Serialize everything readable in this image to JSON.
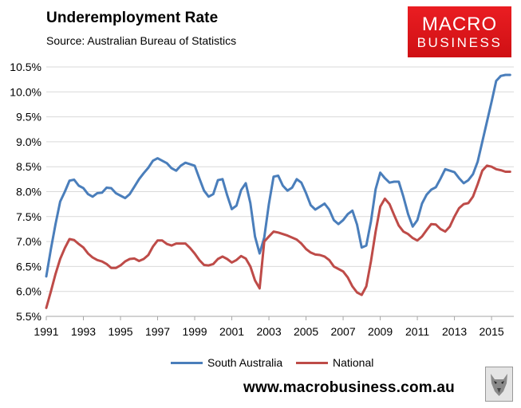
{
  "header": {
    "title": "Underemployment Rate",
    "subtitle": "Source: Australian Bureau of Statistics"
  },
  "logo": {
    "line1": "MACRO",
    "line2": "BUSINESS",
    "color": "#e31b23"
  },
  "footer": {
    "url": "www.macrobusiness.com.au",
    "icon": "wolf-logo-icon"
  },
  "colors": {
    "south_australia": "#4a7ebb",
    "national": "#be4b48",
    "grid": "#d9d9d9"
  },
  "chart_data": {
    "type": "line",
    "title": "Underemployment Rate",
    "xlabel": "",
    "ylabel": "",
    "xlim": [
      1991,
      2016.2
    ],
    "ylim": [
      5.5,
      10.5
    ],
    "y_ticks": [
      "5.5%",
      "6.0%",
      "6.5%",
      "7.0%",
      "7.5%",
      "8.0%",
      "8.5%",
      "9.0%",
      "9.5%",
      "10.0%",
      "10.5%"
    ],
    "x_ticks": [
      "1991",
      "1993",
      "1995",
      "1997",
      "1999",
      "2001",
      "2003",
      "2005",
      "2007",
      "2009",
      "2011",
      "2013",
      "2015"
    ],
    "grid": "horizontal",
    "legend_position": "bottom",
    "series": [
      {
        "name": "South Australia",
        "color": "#4a7ebb",
        "points": [
          [
            1991.0,
            6.3
          ],
          [
            1991.25,
            6.85
          ],
          [
            1991.5,
            7.35
          ],
          [
            1991.75,
            7.8
          ],
          [
            1992.0,
            8.0
          ],
          [
            1992.25,
            8.22
          ],
          [
            1992.5,
            8.24
          ],
          [
            1992.75,
            8.12
          ],
          [
            1993.0,
            8.07
          ],
          [
            1993.25,
            7.95
          ],
          [
            1993.5,
            7.9
          ],
          [
            1993.75,
            7.97
          ],
          [
            1994.0,
            7.98
          ],
          [
            1994.25,
            8.08
          ],
          [
            1994.5,
            8.07
          ],
          [
            1994.75,
            7.97
          ],
          [
            1995.0,
            7.92
          ],
          [
            1995.25,
            7.87
          ],
          [
            1995.5,
            7.95
          ],
          [
            1995.75,
            8.1
          ],
          [
            1996.0,
            8.25
          ],
          [
            1996.25,
            8.37
          ],
          [
            1996.5,
            8.48
          ],
          [
            1996.75,
            8.62
          ],
          [
            1997.0,
            8.67
          ],
          [
            1997.25,
            8.62
          ],
          [
            1997.5,
            8.57
          ],
          [
            1997.75,
            8.47
          ],
          [
            1998.0,
            8.42
          ],
          [
            1998.25,
            8.52
          ],
          [
            1998.5,
            8.58
          ],
          [
            1998.75,
            8.55
          ],
          [
            1999.0,
            8.52
          ],
          [
            1999.25,
            8.27
          ],
          [
            1999.5,
            8.02
          ],
          [
            1999.75,
            7.9
          ],
          [
            2000.0,
            7.95
          ],
          [
            2000.25,
            8.23
          ],
          [
            2000.5,
            8.25
          ],
          [
            2000.75,
            7.93
          ],
          [
            2001.0,
            7.65
          ],
          [
            2001.25,
            7.72
          ],
          [
            2001.5,
            8.03
          ],
          [
            2001.75,
            8.17
          ],
          [
            2002.0,
            7.77
          ],
          [
            2002.25,
            7.1
          ],
          [
            2002.5,
            6.76
          ],
          [
            2002.75,
            7.08
          ],
          [
            2003.0,
            7.75
          ],
          [
            2003.25,
            8.3
          ],
          [
            2003.5,
            8.32
          ],
          [
            2003.75,
            8.12
          ],
          [
            2004.0,
            8.02
          ],
          [
            2004.25,
            8.08
          ],
          [
            2004.5,
            8.25
          ],
          [
            2004.75,
            8.18
          ],
          [
            2005.0,
            7.97
          ],
          [
            2005.25,
            7.73
          ],
          [
            2005.5,
            7.64
          ],
          [
            2005.75,
            7.7
          ],
          [
            2006.0,
            7.76
          ],
          [
            2006.25,
            7.64
          ],
          [
            2006.5,
            7.43
          ],
          [
            2006.75,
            7.35
          ],
          [
            2007.0,
            7.43
          ],
          [
            2007.25,
            7.55
          ],
          [
            2007.5,
            7.62
          ],
          [
            2007.75,
            7.34
          ],
          [
            2008.0,
            6.88
          ],
          [
            2008.25,
            6.92
          ],
          [
            2008.5,
            7.4
          ],
          [
            2008.75,
            8.05
          ],
          [
            2009.0,
            8.38
          ],
          [
            2009.25,
            8.27
          ],
          [
            2009.5,
            8.18
          ],
          [
            2009.75,
            8.2
          ],
          [
            2010.0,
            8.2
          ],
          [
            2010.25,
            7.9
          ],
          [
            2010.5,
            7.55
          ],
          [
            2010.75,
            7.3
          ],
          [
            2011.0,
            7.43
          ],
          [
            2011.25,
            7.76
          ],
          [
            2011.5,
            7.94
          ],
          [
            2011.75,
            8.04
          ],
          [
            2012.0,
            8.09
          ],
          [
            2012.25,
            8.26
          ],
          [
            2012.5,
            8.45
          ],
          [
            2012.75,
            8.42
          ],
          [
            2013.0,
            8.39
          ],
          [
            2013.25,
            8.27
          ],
          [
            2013.5,
            8.17
          ],
          [
            2013.75,
            8.23
          ],
          [
            2014.0,
            8.35
          ],
          [
            2014.25,
            8.6
          ],
          [
            2014.5,
            9.0
          ],
          [
            2014.75,
            9.4
          ],
          [
            2015.0,
            9.8
          ],
          [
            2015.25,
            10.22
          ],
          [
            2015.5,
            10.32
          ],
          [
            2015.75,
            10.34
          ],
          [
            2016.0,
            10.34
          ]
        ]
      },
      {
        "name": "National",
        "color": "#be4b48",
        "points": [
          [
            1991.0,
            5.67
          ],
          [
            1991.25,
            6.0
          ],
          [
            1991.5,
            6.35
          ],
          [
            1991.75,
            6.65
          ],
          [
            1992.0,
            6.87
          ],
          [
            1992.25,
            7.05
          ],
          [
            1992.5,
            7.03
          ],
          [
            1992.75,
            6.95
          ],
          [
            1993.0,
            6.88
          ],
          [
            1993.25,
            6.76
          ],
          [
            1993.5,
            6.68
          ],
          [
            1993.75,
            6.63
          ],
          [
            1994.0,
            6.6
          ],
          [
            1994.25,
            6.55
          ],
          [
            1994.5,
            6.47
          ],
          [
            1994.75,
            6.47
          ],
          [
            1995.0,
            6.52
          ],
          [
            1995.25,
            6.6
          ],
          [
            1995.5,
            6.65
          ],
          [
            1995.75,
            6.66
          ],
          [
            1996.0,
            6.61
          ],
          [
            1996.25,
            6.65
          ],
          [
            1996.5,
            6.73
          ],
          [
            1996.75,
            6.9
          ],
          [
            1997.0,
            7.02
          ],
          [
            1997.25,
            7.02
          ],
          [
            1997.5,
            6.95
          ],
          [
            1997.75,
            6.92
          ],
          [
            1998.0,
            6.96
          ],
          [
            1998.25,
            6.96
          ],
          [
            1998.5,
            6.96
          ],
          [
            1998.75,
            6.87
          ],
          [
            1999.0,
            6.76
          ],
          [
            1999.25,
            6.63
          ],
          [
            1999.5,
            6.53
          ],
          [
            1999.75,
            6.52
          ],
          [
            2000.0,
            6.55
          ],
          [
            2000.25,
            6.65
          ],
          [
            2000.5,
            6.7
          ],
          [
            2000.75,
            6.65
          ],
          [
            2001.0,
            6.58
          ],
          [
            2001.25,
            6.63
          ],
          [
            2001.5,
            6.71
          ],
          [
            2001.75,
            6.66
          ],
          [
            2002.0,
            6.5
          ],
          [
            2002.25,
            6.22
          ],
          [
            2002.5,
            6.06
          ],
          [
            2002.75,
            7.0
          ],
          [
            2003.0,
            7.1
          ],
          [
            2003.25,
            7.2
          ],
          [
            2003.5,
            7.18
          ],
          [
            2003.75,
            7.15
          ],
          [
            2004.0,
            7.12
          ],
          [
            2004.25,
            7.08
          ],
          [
            2004.5,
            7.04
          ],
          [
            2004.75,
            6.96
          ],
          [
            2005.0,
            6.85
          ],
          [
            2005.25,
            6.78
          ],
          [
            2005.5,
            6.74
          ],
          [
            2005.75,
            6.73
          ],
          [
            2006.0,
            6.7
          ],
          [
            2006.25,
            6.63
          ],
          [
            2006.5,
            6.5
          ],
          [
            2006.75,
            6.45
          ],
          [
            2007.0,
            6.4
          ],
          [
            2007.25,
            6.28
          ],
          [
            2007.5,
            6.1
          ],
          [
            2007.75,
            5.98
          ],
          [
            2008.0,
            5.93
          ],
          [
            2008.25,
            6.1
          ],
          [
            2008.5,
            6.6
          ],
          [
            2008.75,
            7.2
          ],
          [
            2009.0,
            7.7
          ],
          [
            2009.25,
            7.86
          ],
          [
            2009.5,
            7.75
          ],
          [
            2009.75,
            7.53
          ],
          [
            2010.0,
            7.32
          ],
          [
            2010.25,
            7.2
          ],
          [
            2010.5,
            7.15
          ],
          [
            2010.75,
            7.07
          ],
          [
            2011.0,
            7.02
          ],
          [
            2011.25,
            7.1
          ],
          [
            2011.5,
            7.23
          ],
          [
            2011.75,
            7.35
          ],
          [
            2012.0,
            7.34
          ],
          [
            2012.25,
            7.25
          ],
          [
            2012.5,
            7.2
          ],
          [
            2012.75,
            7.3
          ],
          [
            2013.0,
            7.5
          ],
          [
            2013.25,
            7.67
          ],
          [
            2013.5,
            7.75
          ],
          [
            2013.75,
            7.77
          ],
          [
            2014.0,
            7.9
          ],
          [
            2014.25,
            8.15
          ],
          [
            2014.5,
            8.42
          ],
          [
            2014.75,
            8.52
          ],
          [
            2015.0,
            8.5
          ],
          [
            2015.25,
            8.45
          ],
          [
            2015.5,
            8.43
          ],
          [
            2015.75,
            8.4
          ],
          [
            2016.0,
            8.4
          ]
        ]
      }
    ]
  }
}
